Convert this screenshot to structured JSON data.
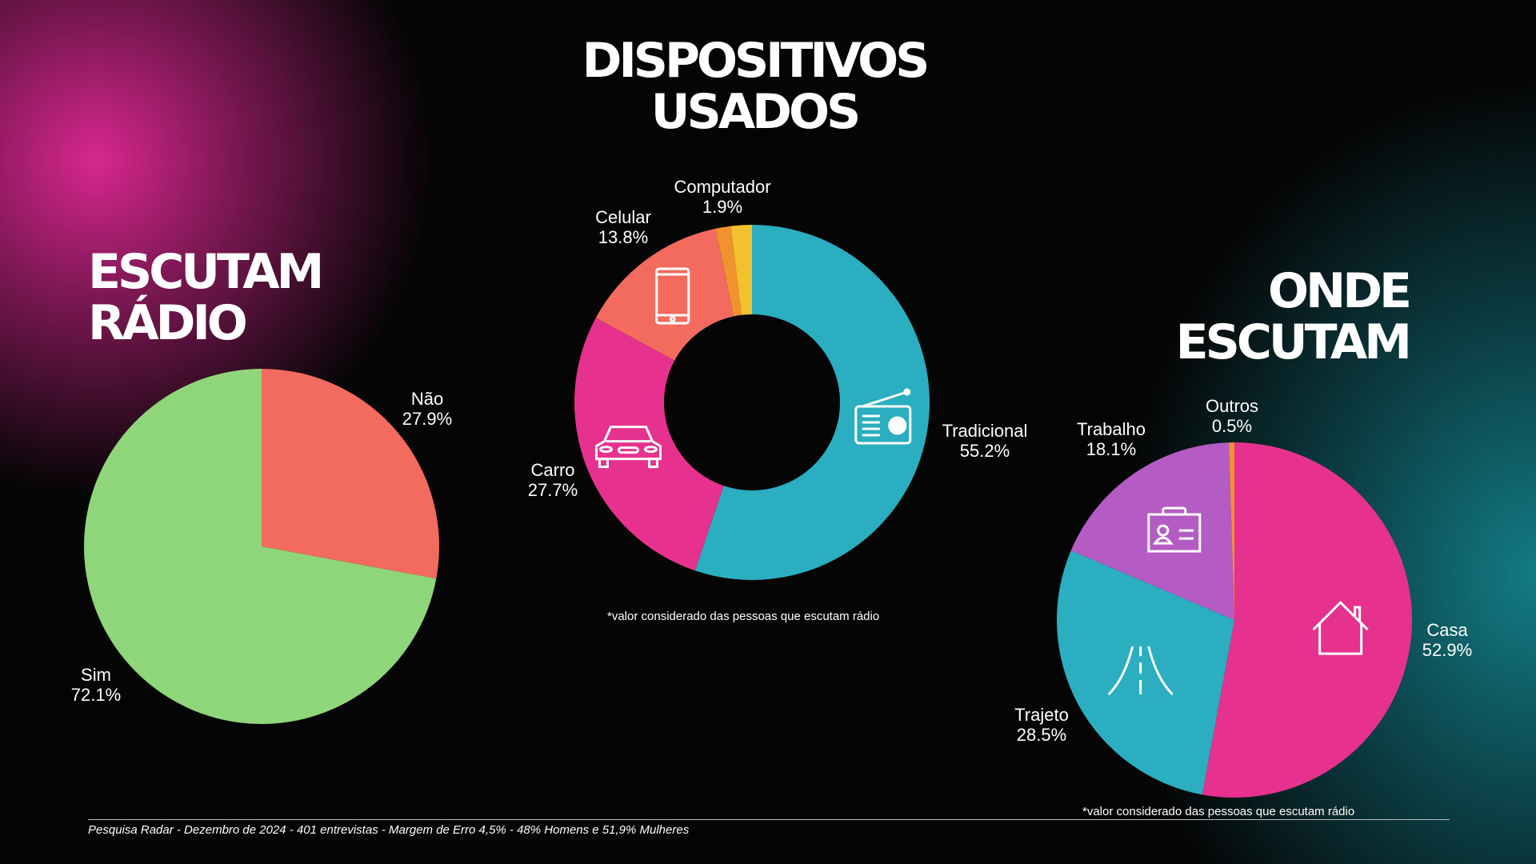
{
  "colors": {
    "green": "#8fd67a",
    "salmon": "#f26b5e",
    "teal": "#2aaec0",
    "pink": "#e6318f",
    "orange": "#f0922e",
    "yellow": "#f2c12e",
    "purple": "#b45cc4"
  },
  "chart_data": [
    {
      "type": "pie",
      "title": [
        "ESCUTAM",
        "RÁDIO"
      ],
      "start": "top",
      "direction": "clockwise",
      "slices": [
        {
          "label": "Não",
          "value": 27.9,
          "display": "27.9%",
          "color": "#f26b5e"
        },
        {
          "label": "Sim",
          "value": 72.1,
          "display": "72.1%",
          "color": "#8fd67a"
        }
      ]
    },
    {
      "type": "donut",
      "title": [
        "DISPOSITIVOS",
        "USADOS"
      ],
      "start": "top",
      "direction": "clockwise",
      "note": "*valor considerado das pessoas que escutam rádio",
      "slices": [
        {
          "label": "Tradicional",
          "value": 55.2,
          "display": "55.2%",
          "color": "#2aaec0",
          "icon": "radio-icon"
        },
        {
          "label": "Carro",
          "value": 27.7,
          "display": "27.7%",
          "color": "#e6318f",
          "icon": "car-icon"
        },
        {
          "label": "Celular",
          "value": 13.8,
          "display": "13.8%",
          "color": "#f26b5e",
          "icon": "smartphone-icon"
        },
        {
          "value": 1.4,
          "color": "#f0922e"
        },
        {
          "label": "Computador",
          "value": 1.9,
          "display": "1.9%",
          "color": "#f2c12e"
        }
      ]
    },
    {
      "type": "pie",
      "title": [
        "ONDE",
        "ESCUTAM"
      ],
      "start": "top",
      "direction": "clockwise",
      "note": "*valor considerado das pessoas que escutam rádio",
      "slices": [
        {
          "label": "Casa",
          "value": 52.9,
          "display": "52.9%",
          "color": "#e6318f",
          "icon": "house-icon"
        },
        {
          "label": "Trajeto",
          "value": 28.5,
          "display": "28.5%",
          "color": "#2aaec0",
          "icon": "road-icon"
        },
        {
          "label": "Trabalho",
          "value": 18.1,
          "display": "18.1%",
          "color": "#b45cc4",
          "icon": "id-badge-icon"
        },
        {
          "label": "Outros",
          "value": 0.5,
          "display": "0.5%",
          "color": "#f0922e"
        }
      ]
    }
  ],
  "footer": "Pesquisa Radar - Dezembro de 2024 - 401 entrevistas - Margem de Erro 4,5% - 48% Homens e 51,9% Mulheres"
}
